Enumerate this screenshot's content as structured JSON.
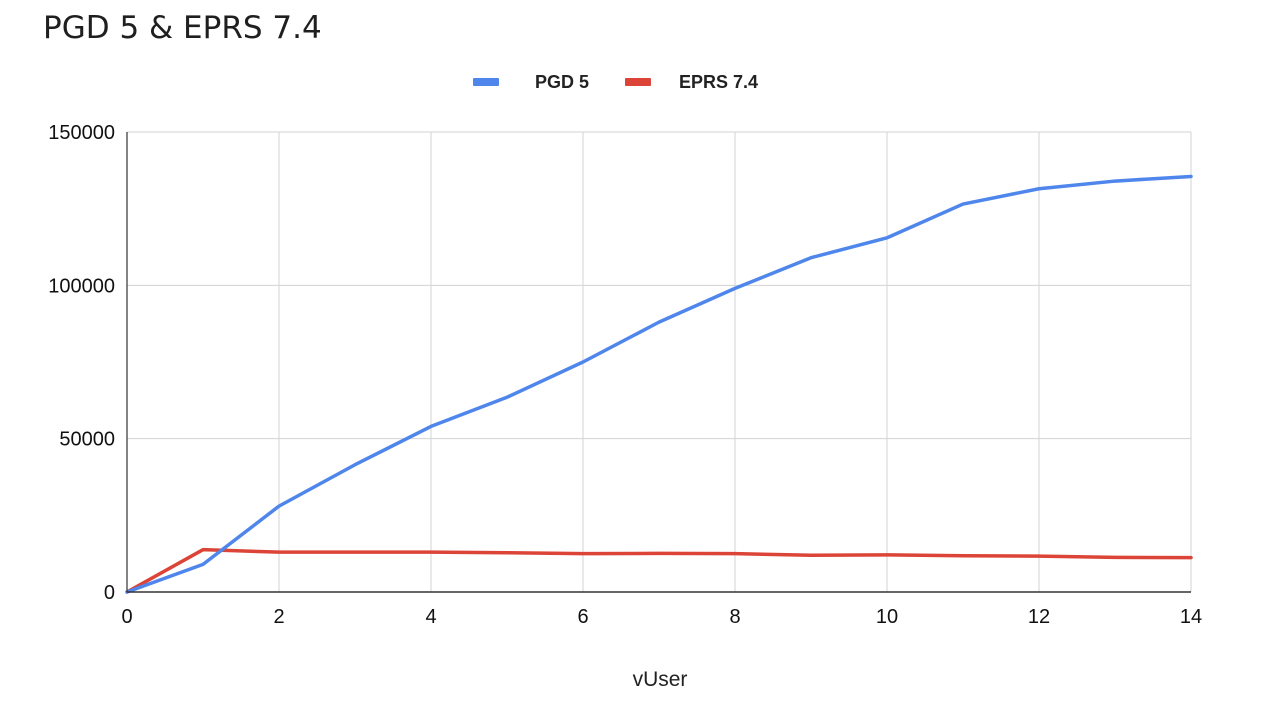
{
  "chart_data": {
    "type": "line",
    "title": "PGD 5 & EPRS 7.4",
    "xlabel": "vUser",
    "ylabel": "",
    "x": [
      0,
      1,
      2,
      3,
      4,
      5,
      6,
      7,
      8,
      9,
      10,
      11,
      12,
      13,
      14
    ],
    "xlim": [
      0,
      14
    ],
    "ylim": [
      0,
      150000
    ],
    "xticks": [
      "0",
      "2",
      "4",
      "6",
      "8",
      "10",
      "12",
      "14"
    ],
    "xtick_values": [
      0,
      2,
      4,
      6,
      8,
      10,
      12,
      14
    ],
    "yticks": [
      "0",
      "50000",
      "100000",
      "150000"
    ],
    "ytick_values": [
      0,
      50000,
      100000,
      150000
    ],
    "grid": true,
    "legend_position": "top",
    "series": [
      {
        "name": "PGD 5",
        "color": "#4f86ec",
        "values": [
          0,
          9000,
          28000,
          41500,
          54000,
          63500,
          75000,
          88000,
          99000,
          109000,
          115500,
          126500,
          131500,
          134000,
          135500
        ]
      },
      {
        "name": "EPRS 7.4",
        "color": "#db4437",
        "values": [
          0,
          13800,
          13000,
          13000,
          13000,
          12800,
          12500,
          12600,
          12500,
          12000,
          12100,
          11800,
          11700,
          11300,
          11200
        ]
      }
    ]
  }
}
